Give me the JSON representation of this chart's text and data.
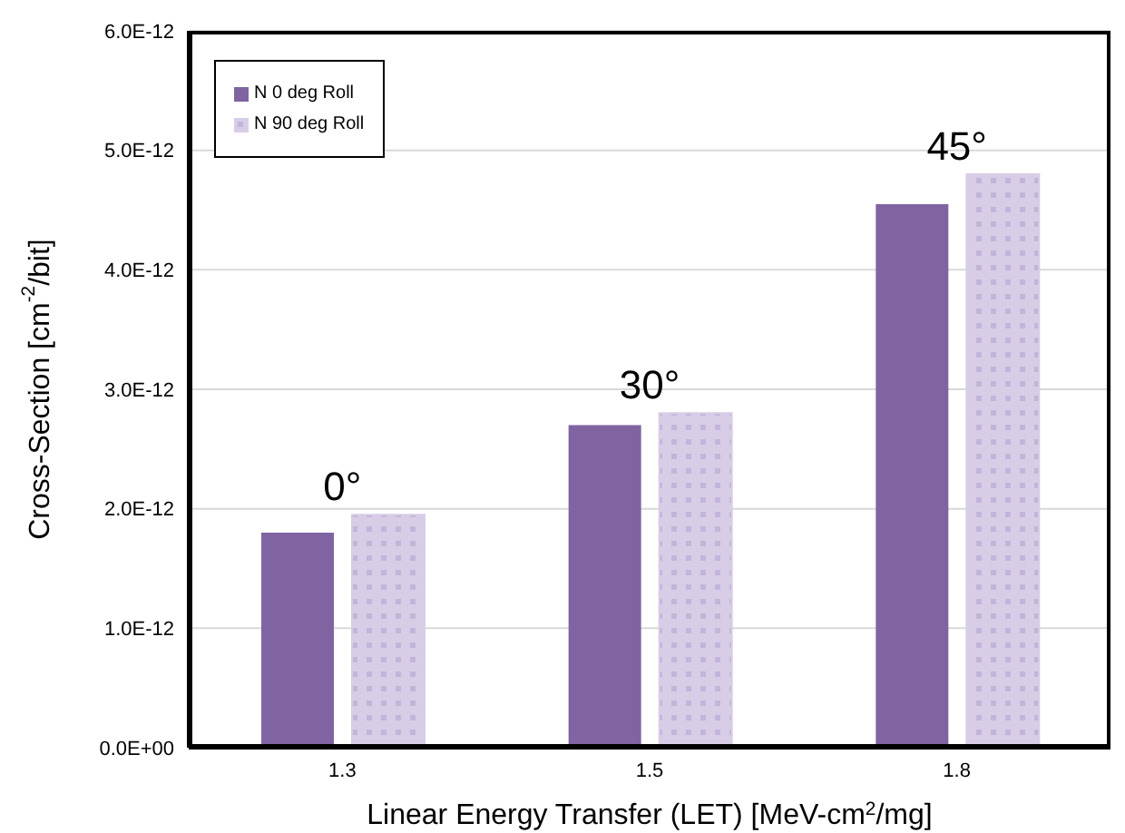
{
  "chart_data": {
    "type": "bar",
    "xlabel": "Linear Energy Transfer (LET) [MeV-cm$^{2}$/mg]",
    "ylabel": "Cross-Section [cm$^{-2}$/bit]",
    "categories": [
      "1.3",
      "1.5",
      "1.8"
    ],
    "series": [
      {
        "name": "N 0 deg Roll",
        "color": "#8064a2",
        "values": [
          1.8e-12,
          2.7e-12,
          4.55e-12
        ]
      },
      {
        "name": "N 90 deg Roll",
        "color": "#d8cde6",
        "values": [
          1.95e-12,
          2.8e-12,
          4.8e-12
        ]
      }
    ],
    "ylim": [
      0,
      6e-12
    ],
    "yticks": [
      {
        "value": 0,
        "label": "0.0E+00"
      },
      {
        "value": 1e-12,
        "label": "1.0E-12"
      },
      {
        "value": 2e-12,
        "label": "2.0E-12"
      },
      {
        "value": 3e-12,
        "label": "3.0E-12"
      },
      {
        "value": 4e-12,
        "label": "4.0E-12"
      },
      {
        "value": 5e-12,
        "label": "5.0E-12"
      },
      {
        "value": 6e-12,
        "label": "6.0E-12"
      }
    ],
    "annotations": [
      "0°",
      "30°",
      "45°"
    ],
    "grid": "y",
    "legend": "top left"
  }
}
